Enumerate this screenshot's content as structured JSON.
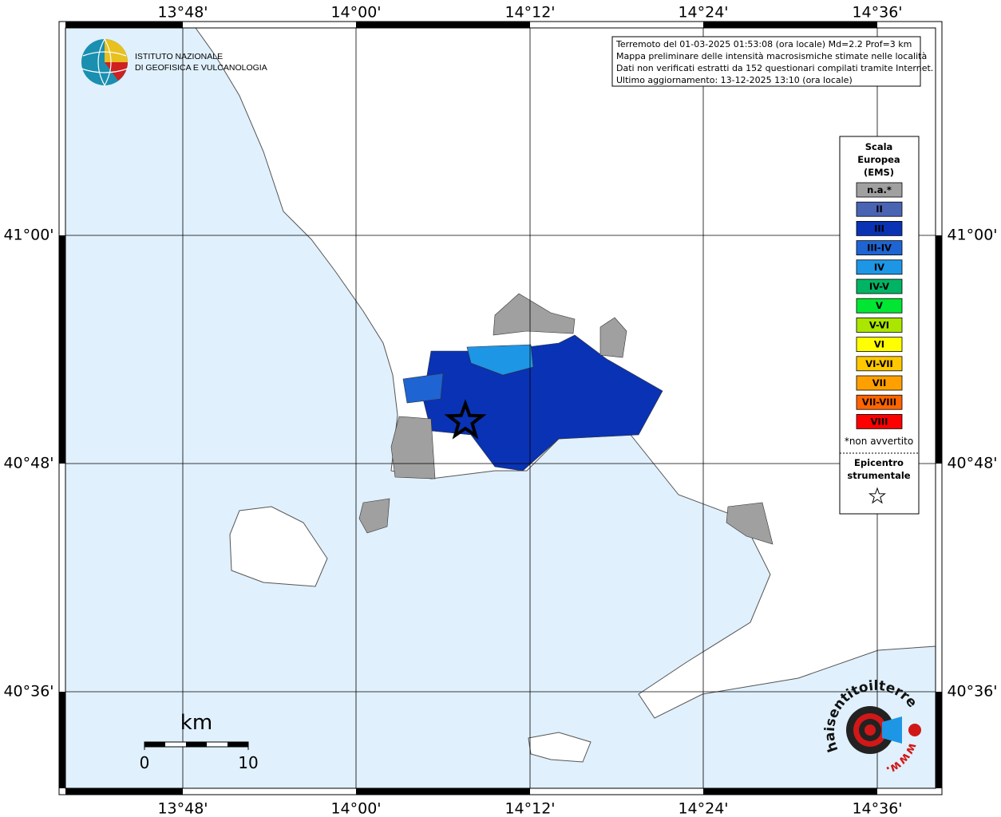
{
  "axes": {
    "top_labels": [
      "13°48'",
      "14°00'",
      "14°12'",
      "14°24'",
      "14°36'"
    ],
    "bottom_labels": [
      "13°48'",
      "14°00'",
      "14°12'",
      "14°24'",
      "14°36'"
    ],
    "left_labels": [
      "41°00'",
      "40°48'",
      "40°36'"
    ],
    "right_labels": [
      "41°00'",
      "40°48'",
      "40°36'"
    ]
  },
  "logo": {
    "lines": [
      "ISTITUTO NAZIONALE",
      "DI GEOFISICA E VULCANOLOGIA"
    ]
  },
  "info_box": {
    "lines": [
      "Terremoto del 01-03-2025 01:53:08 (ora locale) Md=2.2 Prof=3 km",
      "Mappa preliminare delle intensità macrosismiche stimate nelle località",
      "Dati non verificati estratti da 152 questionari compilati tramite Internet.",
      "Ultimo aggiornamento: 13-12-2025 13:10 (ora locale)"
    ]
  },
  "legend": {
    "title_lines": [
      "Scala",
      "Europea",
      "(EMS)"
    ],
    "items": [
      {
        "label": "n.a.*",
        "color": "#a0a0a0"
      },
      {
        "label": "II",
        "color": "#4a64b4"
      },
      {
        "label": "III",
        "color": "#0a32b4"
      },
      {
        "label": "III-IV",
        "color": "#1e64d2"
      },
      {
        "label": "IV",
        "color": "#1e96e6"
      },
      {
        "label": "IV-V",
        "color": "#00b464"
      },
      {
        "label": "V",
        "color": "#00e632"
      },
      {
        "label": "V-VI",
        "color": "#aae600"
      },
      {
        "label": "VI",
        "color": "#ffff00"
      },
      {
        "label": "VI-VII",
        "color": "#ffc800"
      },
      {
        "label": "VII",
        "color": "#ffa000"
      },
      {
        "label": "VII-VIII",
        "color": "#ff6400"
      },
      {
        "label": "VIII",
        "color": "#ff0000"
      }
    ],
    "note": "*non avvertito",
    "epicenter_lines": [
      "Epicentro",
      "strumentale"
    ]
  },
  "scale_bar": {
    "unit": "km",
    "labels": [
      "0",
      "10"
    ]
  },
  "badge": {
    "text": "haisentitoilterremoto.it",
    "prefix": "www."
  }
}
